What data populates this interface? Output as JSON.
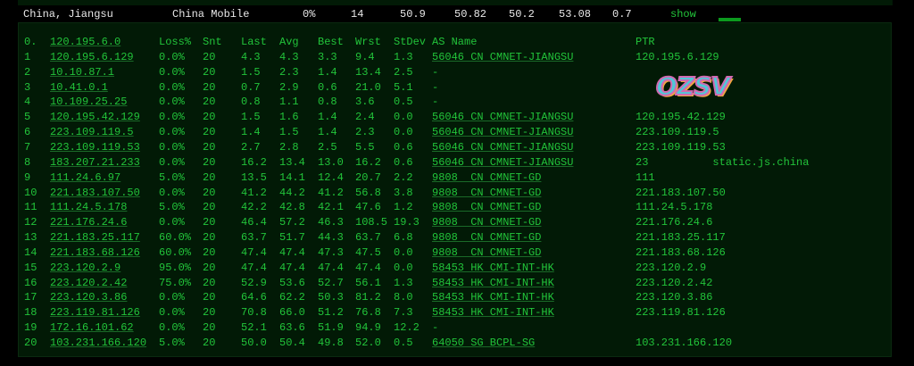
{
  "summary": {
    "location": "China, Jiangsu",
    "isp": "China Mobile",
    "loss": "0%",
    "hops": "14",
    "v1": "50.9",
    "v2": "50.82",
    "v3": "50.2",
    "v4": "53.08",
    "v5": "0.7",
    "show": "show"
  },
  "columns": {
    "idx": "0.",
    "host": "120.195.6.0",
    "loss": "Loss%",
    "snt": "Snt",
    "last": "Last",
    "avg": "Avg",
    "best": "Best",
    "wrst": "Wrst",
    "stdev": "StDev",
    "as": "AS Name",
    "ptr": "PTR"
  },
  "rows": [
    [
      "1",
      "120.195.6.129",
      "0.0%",
      "20",
      "4.3",
      "4.3",
      "3.3",
      "9.4",
      "1.3",
      "56046 CN CMNET-JIANGSU",
      "120.195.6.129"
    ],
    [
      "2",
      "10.10.87.1",
      "0.0%",
      "20",
      "1.5",
      "2.3",
      "1.4",
      "13.4",
      "2.5",
      "-",
      ""
    ],
    [
      "3",
      "10.41.0.1",
      "0.0%",
      "20",
      "0.7",
      "2.9",
      "0.6",
      "21.0",
      "5.1",
      "-",
      ""
    ],
    [
      "4",
      "10.109.25.25",
      "0.0%",
      "20",
      "0.8",
      "1.1",
      "0.8",
      "3.6",
      "0.5",
      "-",
      ""
    ],
    [
      "5",
      "120.195.42.129",
      "0.0%",
      "20",
      "1.5",
      "1.6",
      "1.4",
      "2.4",
      "0.0",
      "56046 CN CMNET-JIANGSU",
      "120.195.42.129"
    ],
    [
      "6",
      "223.109.119.5",
      "0.0%",
      "20",
      "1.4",
      "1.5",
      "1.4",
      "2.3",
      "0.0",
      "56046 CN CMNET-JIANGSU",
      "223.109.119.5"
    ],
    [
      "7",
      "223.109.119.53",
      "0.0%",
      "20",
      "2.7",
      "2.8",
      "2.5",
      "5.5",
      "0.6",
      "56046 CN CMNET-JIANGSU",
      "223.109.119.53"
    ],
    [
      "8",
      "183.207.21.233",
      "0.0%",
      "20",
      "16.2",
      "13.4",
      "13.0",
      "16.2",
      "0.6",
      "56046 CN CMNET-JIANGSU",
      "23          static.js.china"
    ],
    [
      "9",
      "111.24.6.97",
      "5.0%",
      "20",
      "13.5",
      "14.1",
      "12.4",
      "20.7",
      "2.2",
      "9808  CN CMNET-GD",
      "111"
    ],
    [
      "10",
      "221.183.107.50",
      "0.0%",
      "20",
      "41.2",
      "44.2",
      "41.2",
      "56.8",
      "3.8",
      "9808  CN CMNET-GD",
      "221.183.107.50"
    ],
    [
      "11",
      "111.24.5.178",
      "5.0%",
      "20",
      "42.2",
      "42.8",
      "42.1",
      "47.6",
      "1.2",
      "9808  CN CMNET-GD",
      "111.24.5.178"
    ],
    [
      "12",
      "221.176.24.6",
      "0.0%",
      "20",
      "46.4",
      "57.2",
      "46.3",
      "108.5",
      "19.3",
      "9808  CN CMNET-GD",
      "221.176.24.6"
    ],
    [
      "13",
      "221.183.25.117",
      "60.0%",
      "20",
      "63.7",
      "51.7",
      "44.3",
      "63.7",
      "6.8",
      "9808  CN CMNET-GD",
      "221.183.25.117"
    ],
    [
      "14",
      "221.183.68.126",
      "60.0%",
      "20",
      "47.4",
      "47.4",
      "47.3",
      "47.5",
      "0.0",
      "9808  CN CMNET-GD",
      "221.183.68.126"
    ],
    [
      "15",
      "223.120.2.9",
      "95.0%",
      "20",
      "47.4",
      "47.4",
      "47.4",
      "47.4",
      "0.0",
      "58453 HK CMI-INT-HK",
      "223.120.2.9"
    ],
    [
      "16",
      "223.120.2.42",
      "75.0%",
      "20",
      "52.9",
      "53.6",
      "52.7",
      "56.1",
      "1.3",
      "58453 HK CMI-INT-HK",
      "223.120.2.42"
    ],
    [
      "17",
      "223.120.3.86",
      "0.0%",
      "20",
      "64.6",
      "62.2",
      "50.3",
      "81.2",
      "8.0",
      "58453 HK CMI-INT-HK",
      "223.120.3.86"
    ],
    [
      "18",
      "223.119.81.126",
      "0.0%",
      "20",
      "70.8",
      "66.0",
      "51.2",
      "76.8",
      "7.3",
      "58453 HK CMI-INT-HK",
      "223.119.81.126"
    ],
    [
      "19",
      "172.16.101.62",
      "0.0%",
      "20",
      "52.1",
      "63.6",
      "51.9",
      "94.9",
      "12.2",
      "-",
      ""
    ],
    [
      "20",
      "103.231.166.120",
      "5.0%",
      "20",
      "50.0",
      "50.4",
      "49.8",
      "52.0",
      "0.5",
      "64050 SG BCPL-SG",
      "103.231.166.120"
    ]
  ],
  "watermark": "OZSV",
  "colors": {
    "text": "#22c43a",
    "panel": "#021a06",
    "header_text": "#e8e8e8"
  }
}
